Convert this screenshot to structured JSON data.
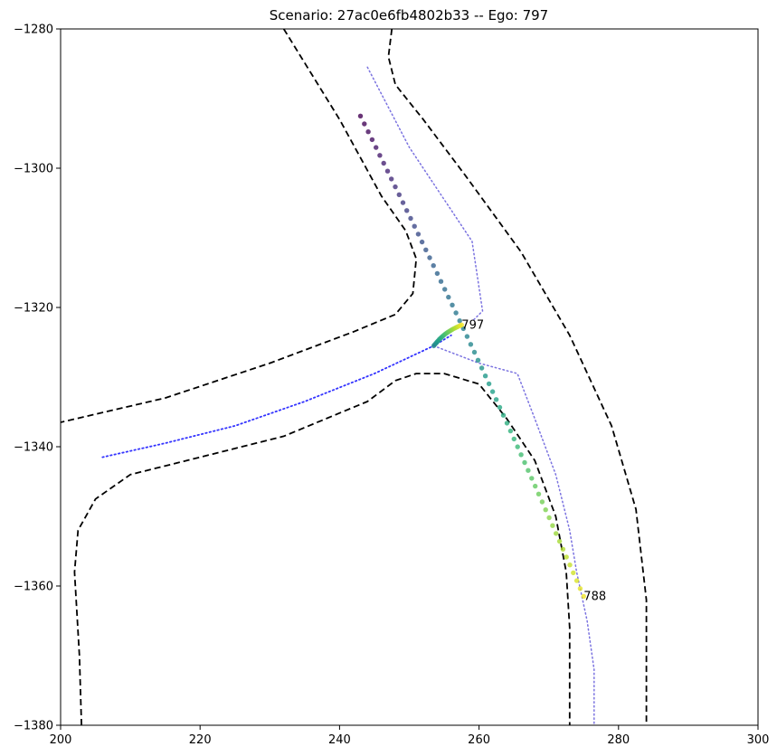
{
  "chart_data": {
    "type": "scatter",
    "title": "Scenario: 27ac0e6fb4802b33 -- Ego: 797",
    "xlabel": "",
    "ylabel": "",
    "xlim": [
      200,
      300
    ],
    "ylim": [
      -1380,
      -1280
    ],
    "x_ticks": [
      200,
      220,
      240,
      260,
      280,
      300
    ],
    "y_ticks": [
      -1280,
      -1300,
      -1320,
      -1340,
      -1360,
      -1380
    ],
    "x_tick_labels": [
      "200",
      "220",
      "240",
      "260",
      "280",
      "300"
    ],
    "y_tick_labels": [
      "−1280",
      "−1300",
      "−1320",
      "−1340",
      "−1360",
      "−1380"
    ],
    "grid": false,
    "road_edges": [
      {
        "points": [
          [
            232,
            -1280
          ],
          [
            240,
            -1293
          ],
          [
            246,
            -1304
          ],
          [
            249.5,
            -1309
          ],
          [
            251,
            -1313
          ],
          [
            250.5,
            -1318
          ],
          [
            248,
            -1321
          ],
          [
            242,
            -1323.5
          ],
          [
            230,
            -1328
          ],
          [
            215,
            -1333
          ],
          [
            200,
            -1336.5
          ]
        ]
      },
      {
        "points": [
          [
            203,
            -1380
          ],
          [
            202.7,
            -1370
          ],
          [
            202,
            -1358
          ],
          [
            202.5,
            -1352
          ],
          [
            205,
            -1347.5
          ],
          [
            210,
            -1344
          ],
          [
            220,
            -1341.5
          ],
          [
            232,
            -1338.5
          ],
          [
            244,
            -1333.5
          ],
          [
            248,
            -1330.5
          ],
          [
            251,
            -1329.5
          ],
          [
            255,
            -1329.5
          ],
          [
            260,
            -1331
          ],
          [
            264,
            -1336
          ],
          [
            268,
            -1342
          ],
          [
            271,
            -1350
          ],
          [
            272.5,
            -1358
          ],
          [
            273,
            -1366
          ],
          [
            273,
            -1380
          ]
        ]
      },
      {
        "points": [
          [
            247.5,
            -1280
          ],
          [
            247,
            -1284
          ],
          [
            248,
            -1288
          ],
          [
            252,
            -1293
          ],
          [
            258,
            -1301
          ],
          [
            266,
            -1312
          ],
          [
            273,
            -1324
          ],
          [
            279,
            -1337
          ],
          [
            282.5,
            -1349
          ],
          [
            284,
            -1362
          ],
          [
            284,
            -1380
          ]
        ]
      }
    ],
    "lane_centerlines": [
      {
        "points": [
          [
            244,
            -1285.5
          ],
          [
            250,
            -1297
          ],
          [
            259,
            -1310.5
          ],
          [
            260.5,
            -1320.5
          ],
          [
            259,
            -1322
          ]
        ]
      },
      {
        "points": [
          [
            253.5,
            -1325.5
          ],
          [
            260,
            -1328
          ],
          [
            265.5,
            -1329.5
          ],
          [
            268,
            -1336
          ],
          [
            271,
            -1344
          ],
          [
            273,
            -1352
          ],
          [
            274,
            -1358
          ],
          [
            275.5,
            -1365
          ],
          [
            276.5,
            -1372
          ],
          [
            276.5,
            -1380
          ]
        ]
      },
      {
        "points": [
          [
            206,
            -1341.5
          ],
          [
            215,
            -1339.5
          ],
          [
            225,
            -1337
          ],
          [
            235,
            -1333.5
          ],
          [
            245,
            -1329.5
          ],
          [
            253.5,
            -1325.5
          ],
          [
            256,
            -1324
          ]
        ]
      }
    ],
    "series": [
      {
        "name": "788",
        "start": [
          243,
          -1292.5
        ],
        "end": [
          275,
          -1361.5
        ],
        "count": 62,
        "colormap": "viridis"
      },
      {
        "name": "797",
        "start": [
          253.5,
          -1325.5
        ],
        "end": [
          257.5,
          -1322.5
        ],
        "count": 22,
        "colormap": "viridis"
      }
    ],
    "agent_labels": [
      {
        "text": "797",
        "x": 257.5,
        "y": -1322.5
      },
      {
        "text": "788",
        "x": 275,
        "y": -1361.5
      }
    ],
    "colors": {
      "road_edge": "#000000",
      "lane_dotted": "#7b73e0",
      "lane_ego": "#3333ff"
    }
  }
}
